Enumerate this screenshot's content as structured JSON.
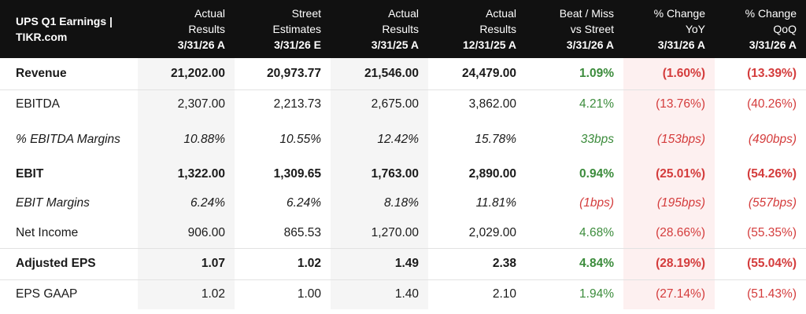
{
  "table": {
    "title_line1": "UPS Q1 Earnings |",
    "title_line2": "TIKR.com",
    "columns": [
      {
        "l1": "Actual",
        "l2": "Results",
        "date": "3/31/26 A"
      },
      {
        "l1": "Street",
        "l2": "Estimates",
        "date": "3/31/26 E"
      },
      {
        "l1": "Actual",
        "l2": "Results",
        "date": "3/31/25 A"
      },
      {
        "l1": "Actual",
        "l2": "Results",
        "date": "12/31/25 A"
      },
      {
        "l1": "Beat / Miss",
        "l2": "vs Street",
        "date": "3/31/26 A"
      },
      {
        "l1": "% Change",
        "l2": "YoY",
        "date": "3/31/26 A"
      },
      {
        "l1": "% Change",
        "l2": "QoQ",
        "date": "3/31/26 A"
      }
    ],
    "rows": [
      {
        "label": "Revenue",
        "values": [
          "21,202.00",
          "20,973.77",
          "21,546.00",
          "24,479.00",
          "1.09%",
          "(1.60%)",
          "(13.39%)"
        ]
      },
      {
        "label": "EBITDA",
        "values": [
          "2,307.00",
          "2,213.73",
          "2,675.00",
          "3,862.00",
          "4.21%",
          "(13.76%)",
          "(40.26%)"
        ]
      },
      {
        "label": "% EBITDA Margins",
        "values": [
          "10.88%",
          "10.55%",
          "12.42%",
          "15.78%",
          "33bps",
          "(153bps)",
          "(490bps)"
        ]
      },
      {
        "label": "EBIT",
        "values": [
          "1,322.00",
          "1,309.65",
          "1,763.00",
          "2,890.00",
          "0.94%",
          "(25.01%)",
          "(54.26%)"
        ]
      },
      {
        "label": "EBIT Margins",
        "values": [
          "6.24%",
          "6.24%",
          "8.18%",
          "11.81%",
          "(1bps)",
          "(195bps)",
          "(557bps)"
        ]
      },
      {
        "label": "Net Income",
        "values": [
          "906.00",
          "865.53",
          "1,270.00",
          "2,029.00",
          "4.68%",
          "(28.66%)",
          "(55.35%)"
        ]
      },
      {
        "label": "Adjusted EPS",
        "values": [
          "1.07",
          "1.02",
          "1.49",
          "2.38",
          "4.84%",
          "(28.19%)",
          "(55.04%)"
        ]
      },
      {
        "label": "EPS GAAP",
        "values": [
          "1.02",
          "1.00",
          "1.40",
          "2.10",
          "1.94%",
          "(27.14%)",
          "(51.43%)"
        ]
      }
    ]
  },
  "colors": {
    "header_bg": "#111111",
    "positive": "#3c8c3c",
    "negative": "#d43c3c",
    "shade": "#f5f5f5",
    "negative_shade": "#fdf0f0"
  }
}
